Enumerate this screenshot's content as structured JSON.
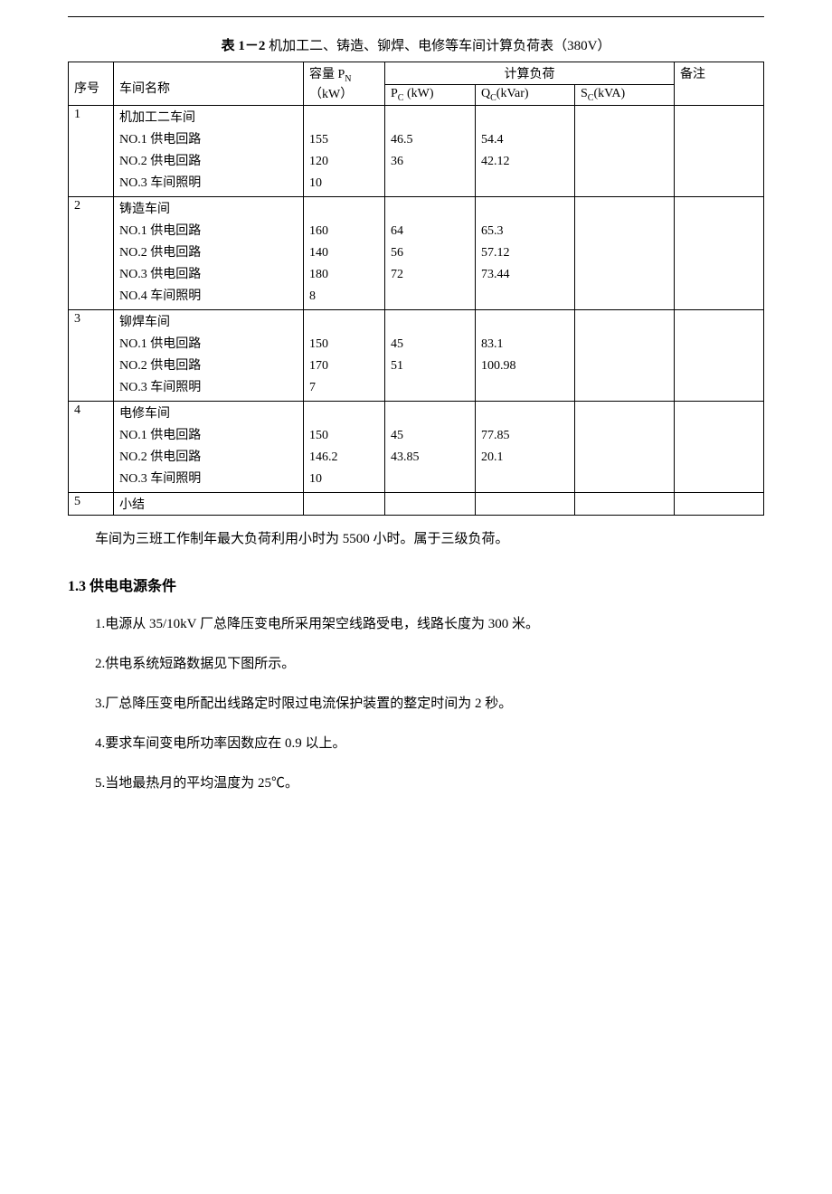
{
  "caption_prefix": "表 1－2",
  "caption_text": " 机加工二、铸造、铆焊、电修等车间计算负荷表（380V）",
  "headers": {
    "seq": "序号",
    "name": "车间名称",
    "pn_line1": "容量 P",
    "pn_sub": "N",
    "pn_line2": "（kW）",
    "calc_load": "计算负荷",
    "pc_prefix": "P",
    "pc_sub": "C",
    "pc_unit": " (kW)",
    "qc_prefix": "Q",
    "qc_sub": "C",
    "qc_unit": "(kVar)",
    "sc_prefix": "S",
    "sc_sub": "C",
    "sc_unit": "(kVA)",
    "note": "备注"
  },
  "group1": {
    "seq": "1",
    "title": "机加工二车间",
    "r1_name": "NO.1 供电回路",
    "r1_pn": "155",
    "r1_pc": "46.5",
    "r1_qc": "54.4",
    "r2_name": "NO.2 供电回路",
    "r2_pn": "120",
    "r2_pc": "36",
    "r2_qc": "42.12",
    "r3_name": "NO.3 车间照明",
    "r3_pn": "10"
  },
  "group2": {
    "seq": "2",
    "title": "铸造车间",
    "r1_name": "NO.1 供电回路",
    "r1_pn": "160",
    "r1_pc": "64",
    "r1_qc": "65.3",
    "r2_name": "NO.2 供电回路",
    "r2_pn": "140",
    "r2_pc": "56",
    "r2_qc": "57.12",
    "r3_name": "NO.3 供电回路",
    "r3_pn": "180",
    "r3_pc": "72",
    "r3_qc": "73.44",
    "r4_name": "NO.4 车间照明",
    "r4_pn": "8"
  },
  "group3": {
    "seq": "3",
    "title": "铆焊车间",
    "r1_name": "NO.1 供电回路",
    "r1_pn": "150",
    "r1_pc": "45",
    "r1_qc": "83.1",
    "r2_name": "NO.2 供电回路",
    "r2_pn": "170",
    "r2_pc": "51",
    "r2_qc": "100.98",
    "r3_name": "NO.3 车间照明",
    "r3_pn": "7"
  },
  "group4": {
    "seq": "4",
    "title": "电修车间",
    "r1_name": "NO.1 供电回路",
    "r1_pn": "150",
    "r1_pc": "45",
    "r1_qc": "77.85",
    "r2_name": "NO.2 供电回路",
    "r2_pn": "146.2",
    "r2_pc": "43.85",
    "r2_qc": "20.1",
    "r3_name": "NO.3 车间照明",
    "r3_pn": "10"
  },
  "group5": {
    "seq": "5",
    "title": "小结"
  },
  "after_table_note": "车间为三班工作制年最大负荷利用小时为 5500 小时。属于三级负荷。",
  "section_heading": "1.3 供电电源条件",
  "item1": "1.电源从 35/10kV 厂总降压变电所采用架空线路受电，线路长度为 300 米。",
  "item2": "2.供电系统短路数据见下图所示。",
  "item3": "3.厂总降压变电所配出线路定时限过电流保护装置的整定时间为 2 秒。",
  "item4": "4.要求车间变电所功率因数应在 0.9 以上。",
  "item5": "5.当地最热月的平均温度为 25℃。"
}
